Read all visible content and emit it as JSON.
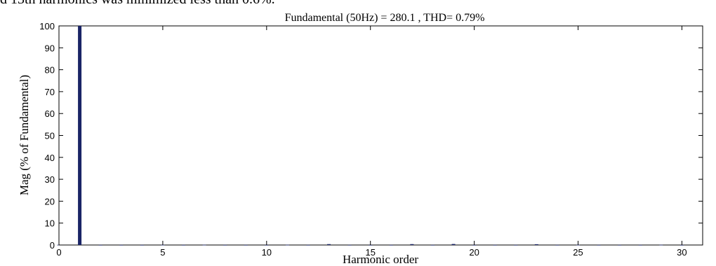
{
  "page_text": "d 13th harmonics was minimized less than 0.6%.",
  "chart_data": {
    "type": "bar",
    "title": "Fundamental (50Hz) = 280.1 , THD= 0.79%",
    "xlabel": "Harmonic order",
    "ylabel": "Mag (% of Fundamental)",
    "xlim": [
      0,
      31
    ],
    "ylim": [
      0,
      100
    ],
    "xticks": [
      0,
      5,
      10,
      15,
      20,
      25,
      30
    ],
    "yticks": [
      0,
      10,
      20,
      30,
      40,
      50,
      60,
      70,
      80,
      90,
      100
    ],
    "grid": false,
    "bar_color": "#1a2466",
    "x": [
      0,
      1,
      2,
      3,
      4,
      5,
      6,
      7,
      8,
      9,
      10,
      11,
      12,
      13,
      14,
      15,
      16,
      17,
      18,
      19,
      20,
      21,
      22,
      23,
      24,
      25,
      26,
      27,
      28,
      29,
      30
    ],
    "values": [
      0.1,
      100,
      0.05,
      0.05,
      0.05,
      0.1,
      0.05,
      0.1,
      0.05,
      0.05,
      0.05,
      0.1,
      0.05,
      0.4,
      0.05,
      0.05,
      0.05,
      0.4,
      0.05,
      0.45,
      0.05,
      0.05,
      0.05,
      0.35,
      0.05,
      0.1,
      0.05,
      0.05,
      0.05,
      0.1,
      0.05
    ]
  }
}
